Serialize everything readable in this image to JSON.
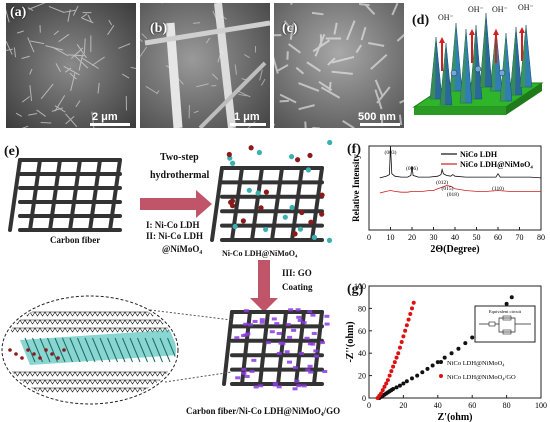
{
  "panel_a": {
    "label": "(a)",
    "scale": "2 μm"
  },
  "panel_b": {
    "label": "(b)",
    "scale": "1 μm"
  },
  "panel_c": {
    "label": "(c)",
    "scale": "500 nm"
  },
  "panel_d": {
    "label": "(d)",
    "ion": "OH⁻"
  },
  "panel_e": {
    "label": "(e)",
    "arrow1_line1": "Two-step",
    "arrow1_line2": "hydrothermal",
    "step1": "I: Ni-Co LDH",
    "step2a": "II: Ni-Co LDH",
    "step2b": "@NiMoO₄",
    "carbon_fiber": "Carbon fiber",
    "intermediate": "Ni-Co LDH@NiMoO₄",
    "step3a": "III: GO",
    "step3b": "Coating",
    "final": "Carbon fiber/Ni-Co LDH@NiMoO₄/GO"
  },
  "panel_f": {
    "label": "(f)"
  },
  "panel_g": {
    "label": "(g)",
    "circuit_title": "Equivalent circuit"
  },
  "chart_data": [
    {
      "type": "line",
      "panel": "(f)",
      "xlabel": "2Θ(Degree)",
      "ylabel": "Relative Intensity",
      "xlim": [
        0,
        80
      ],
      "xticks": [
        0,
        10,
        20,
        30,
        40,
        50,
        60,
        70,
        80
      ],
      "series": [
        {
          "name": "NiCo LDH",
          "color": "#111111",
          "x": [
            5,
            8,
            9.5,
            10,
            10.6,
            12,
            15,
            18,
            19.5,
            20,
            20.5,
            23,
            28,
            32,
            33.5,
            34,
            34.6,
            36,
            38,
            39,
            40,
            45,
            50,
            55,
            59,
            60,
            61,
            65,
            70,
            75,
            80
          ],
          "y": [
            0.62,
            0.64,
            0.66,
            1.0,
            0.67,
            0.64,
            0.63,
            0.63,
            0.65,
            0.76,
            0.65,
            0.63,
            0.63,
            0.64,
            0.66,
            0.72,
            0.67,
            0.65,
            0.64,
            0.66,
            0.64,
            0.63,
            0.63,
            0.63,
            0.63,
            0.67,
            0.63,
            0.63,
            0.63,
            0.63,
            0.62
          ]
        },
        {
          "name": "NiCo LDH@NiMoO₄",
          "color": "#cc2222",
          "x": [
            5,
            8,
            10,
            12,
            15,
            18,
            20,
            22,
            25,
            28,
            30,
            32,
            34,
            36,
            38,
            40,
            45,
            50,
            55,
            60,
            65,
            70,
            75,
            80
          ],
          "y": [
            0.44,
            0.46,
            0.47,
            0.46,
            0.45,
            0.45,
            0.46,
            0.46,
            0.46,
            0.47,
            0.47,
            0.49,
            0.51,
            0.53,
            0.52,
            0.49,
            0.47,
            0.46,
            0.46,
            0.47,
            0.46,
            0.46,
            0.46,
            0.46
          ]
        }
      ],
      "annotations": [
        {
          "x": 10.0,
          "text": "(003)"
        },
        {
          "x": 20.0,
          "text": "(006)"
        },
        {
          "x": 34.0,
          "text": "(012)"
        },
        {
          "x": 36.5,
          "text": "(015)"
        },
        {
          "x": 39.0,
          "text": "(018)"
        },
        {
          "x": 60.0,
          "text": "(110)"
        }
      ]
    },
    {
      "type": "scatter",
      "panel": "(g)",
      "xlabel": "Z'(ohm)",
      "ylabel": "-Z''(ohm)",
      "xlim": [
        0,
        100
      ],
      "ylim": [
        0,
        100
      ],
      "xticks": [
        0,
        20,
        40,
        60,
        80,
        100
      ],
      "yticks": [
        0,
        20,
        40,
        60,
        80,
        100
      ],
      "legend_position": "bottom-right",
      "series": [
        {
          "name": "NiCo LDH@NiMoO₄",
          "color": "#111111",
          "x": [
            6,
            7,
            8,
            9,
            10,
            11,
            12,
            13,
            14,
            16,
            18,
            20,
            22,
            25,
            28,
            31,
            34,
            37,
            40,
            44,
            48,
            52,
            56,
            60,
            64,
            68,
            72,
            76,
            80,
            83
          ],
          "y": [
            0,
            1,
            2,
            3,
            4,
            5,
            6,
            7,
            8,
            9.5,
            11,
            13,
            15,
            17.5,
            20,
            23,
            26,
            29,
            32,
            36,
            40,
            44,
            49,
            54,
            59,
            65,
            71,
            77,
            84,
            90
          ]
        },
        {
          "name": "NiCo LDH@NiMoO₄/GO",
          "color": "#dd1111",
          "x": [
            5,
            6,
            7,
            8,
            9,
            10,
            11,
            12,
            13,
            14,
            15,
            16,
            17,
            18,
            19,
            20,
            21,
            22,
            23,
            24,
            25,
            26
          ],
          "y": [
            0,
            2,
            4,
            7,
            10,
            13,
            16,
            20,
            24,
            28,
            32,
            36,
            40,
            45,
            50,
            55,
            60,
            65,
            70,
            75,
            80,
            85
          ]
        }
      ]
    }
  ]
}
